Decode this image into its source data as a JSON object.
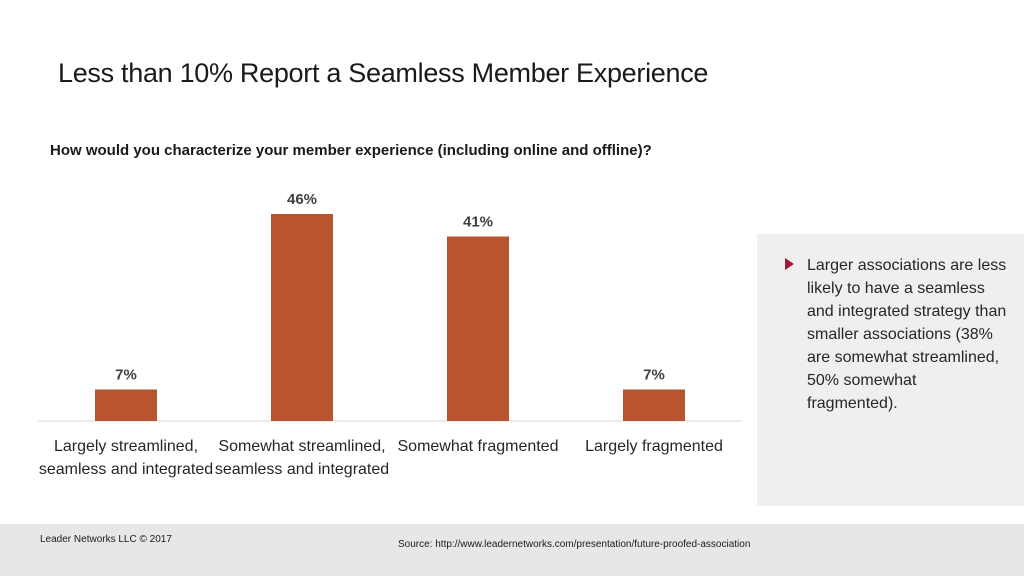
{
  "slide": {
    "title": "Less than 10% Report a Seamless Member Experience",
    "question": "How would you characterize your member experience (including online and offline)?"
  },
  "chart_data": {
    "type": "bar",
    "title": "How would you characterize your member experience (including online and offline)?",
    "categories": [
      "Largely streamlined, seamless and integrated",
      "Somewhat streamlined, seamless and integrated",
      "Somewhat fragmented",
      "Largely fragmented"
    ],
    "values": [
      7,
      46,
      41,
      7
    ],
    "value_labels": [
      "7%",
      "46%",
      "41%",
      "7%"
    ],
    "unit": "%",
    "xlabel": "",
    "ylabel": "",
    "ylim": [
      0,
      50
    ],
    "grid": false,
    "bar_color": "#b85530"
  },
  "callout": {
    "text": "Larger associations are less likely to have a seamless and integrated strategy than smaller associations (38% are somewhat streamlined, 50% somewhat fragmented).",
    "bullet_color": "#a3183a"
  },
  "footer": {
    "copyright": "Leader Networks LLC © 2017",
    "source": "Source:   http://www.leadernetworks.com/presentation/future-proofed-association"
  }
}
